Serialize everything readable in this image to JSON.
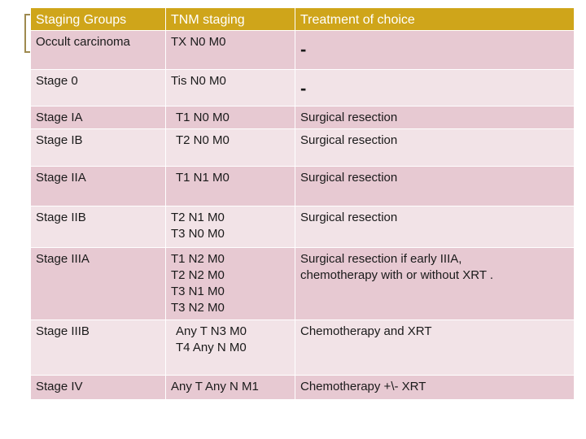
{
  "table": {
    "headers": [
      "Staging Groups",
      "TNM staging",
      "Treatment of choice"
    ],
    "rows": [
      {
        "stage": "Occult carcinoma",
        "tnm": [
          "TX N0 M0"
        ],
        "treatment": [
          "-"
        ]
      },
      {
        "stage": "Stage 0",
        "tnm": [
          "Tis N0 M0"
        ],
        "treatment": [
          "-"
        ]
      },
      {
        "stage": "Stage IA",
        "tnm": [
          "T1 N0 M0"
        ],
        "treatment": [
          "Surgical resection"
        ]
      },
      {
        "stage": "Stage IB",
        "tnm": [
          "T2 N0 M0"
        ],
        "treatment": [
          "Surgical resection"
        ]
      },
      {
        "stage": "Stage IIA",
        "tnm": [
          "T1 N1 M0"
        ],
        "treatment": [
          "Surgical resection"
        ]
      },
      {
        "stage": "Stage IIB",
        "tnm": [
          "T2 N1 M0",
          "T3 N0 M0"
        ],
        "treatment": [
          "Surgical resection"
        ]
      },
      {
        "stage": "Stage IIIA",
        "tnm": [
          "T1 N2 M0",
          "T2 N2 M0",
          "T3 N1 M0",
          "T3 N2 M0"
        ],
        "treatment": [
          "Surgical resection if early IIIA,",
          "chemotherapy with or without XRT ."
        ]
      },
      {
        "stage": "Stage IIIB",
        "tnm": [
          "Any T N3 M0",
          "T4 Any N M0"
        ],
        "treatment": [
          "Chemotherapy and XRT"
        ]
      },
      {
        "stage": "Stage IV",
        "tnm": [
          "Any T Any N M1"
        ],
        "treatment": [
          "Chemotherapy +\\- XRT"
        ]
      }
    ]
  },
  "colors": {
    "header_bg": "#cfa51a",
    "row_dark": "#e7c9d2",
    "row_light": "#f2e3e7",
    "accent_bracket": "#9e8a4f"
  }
}
